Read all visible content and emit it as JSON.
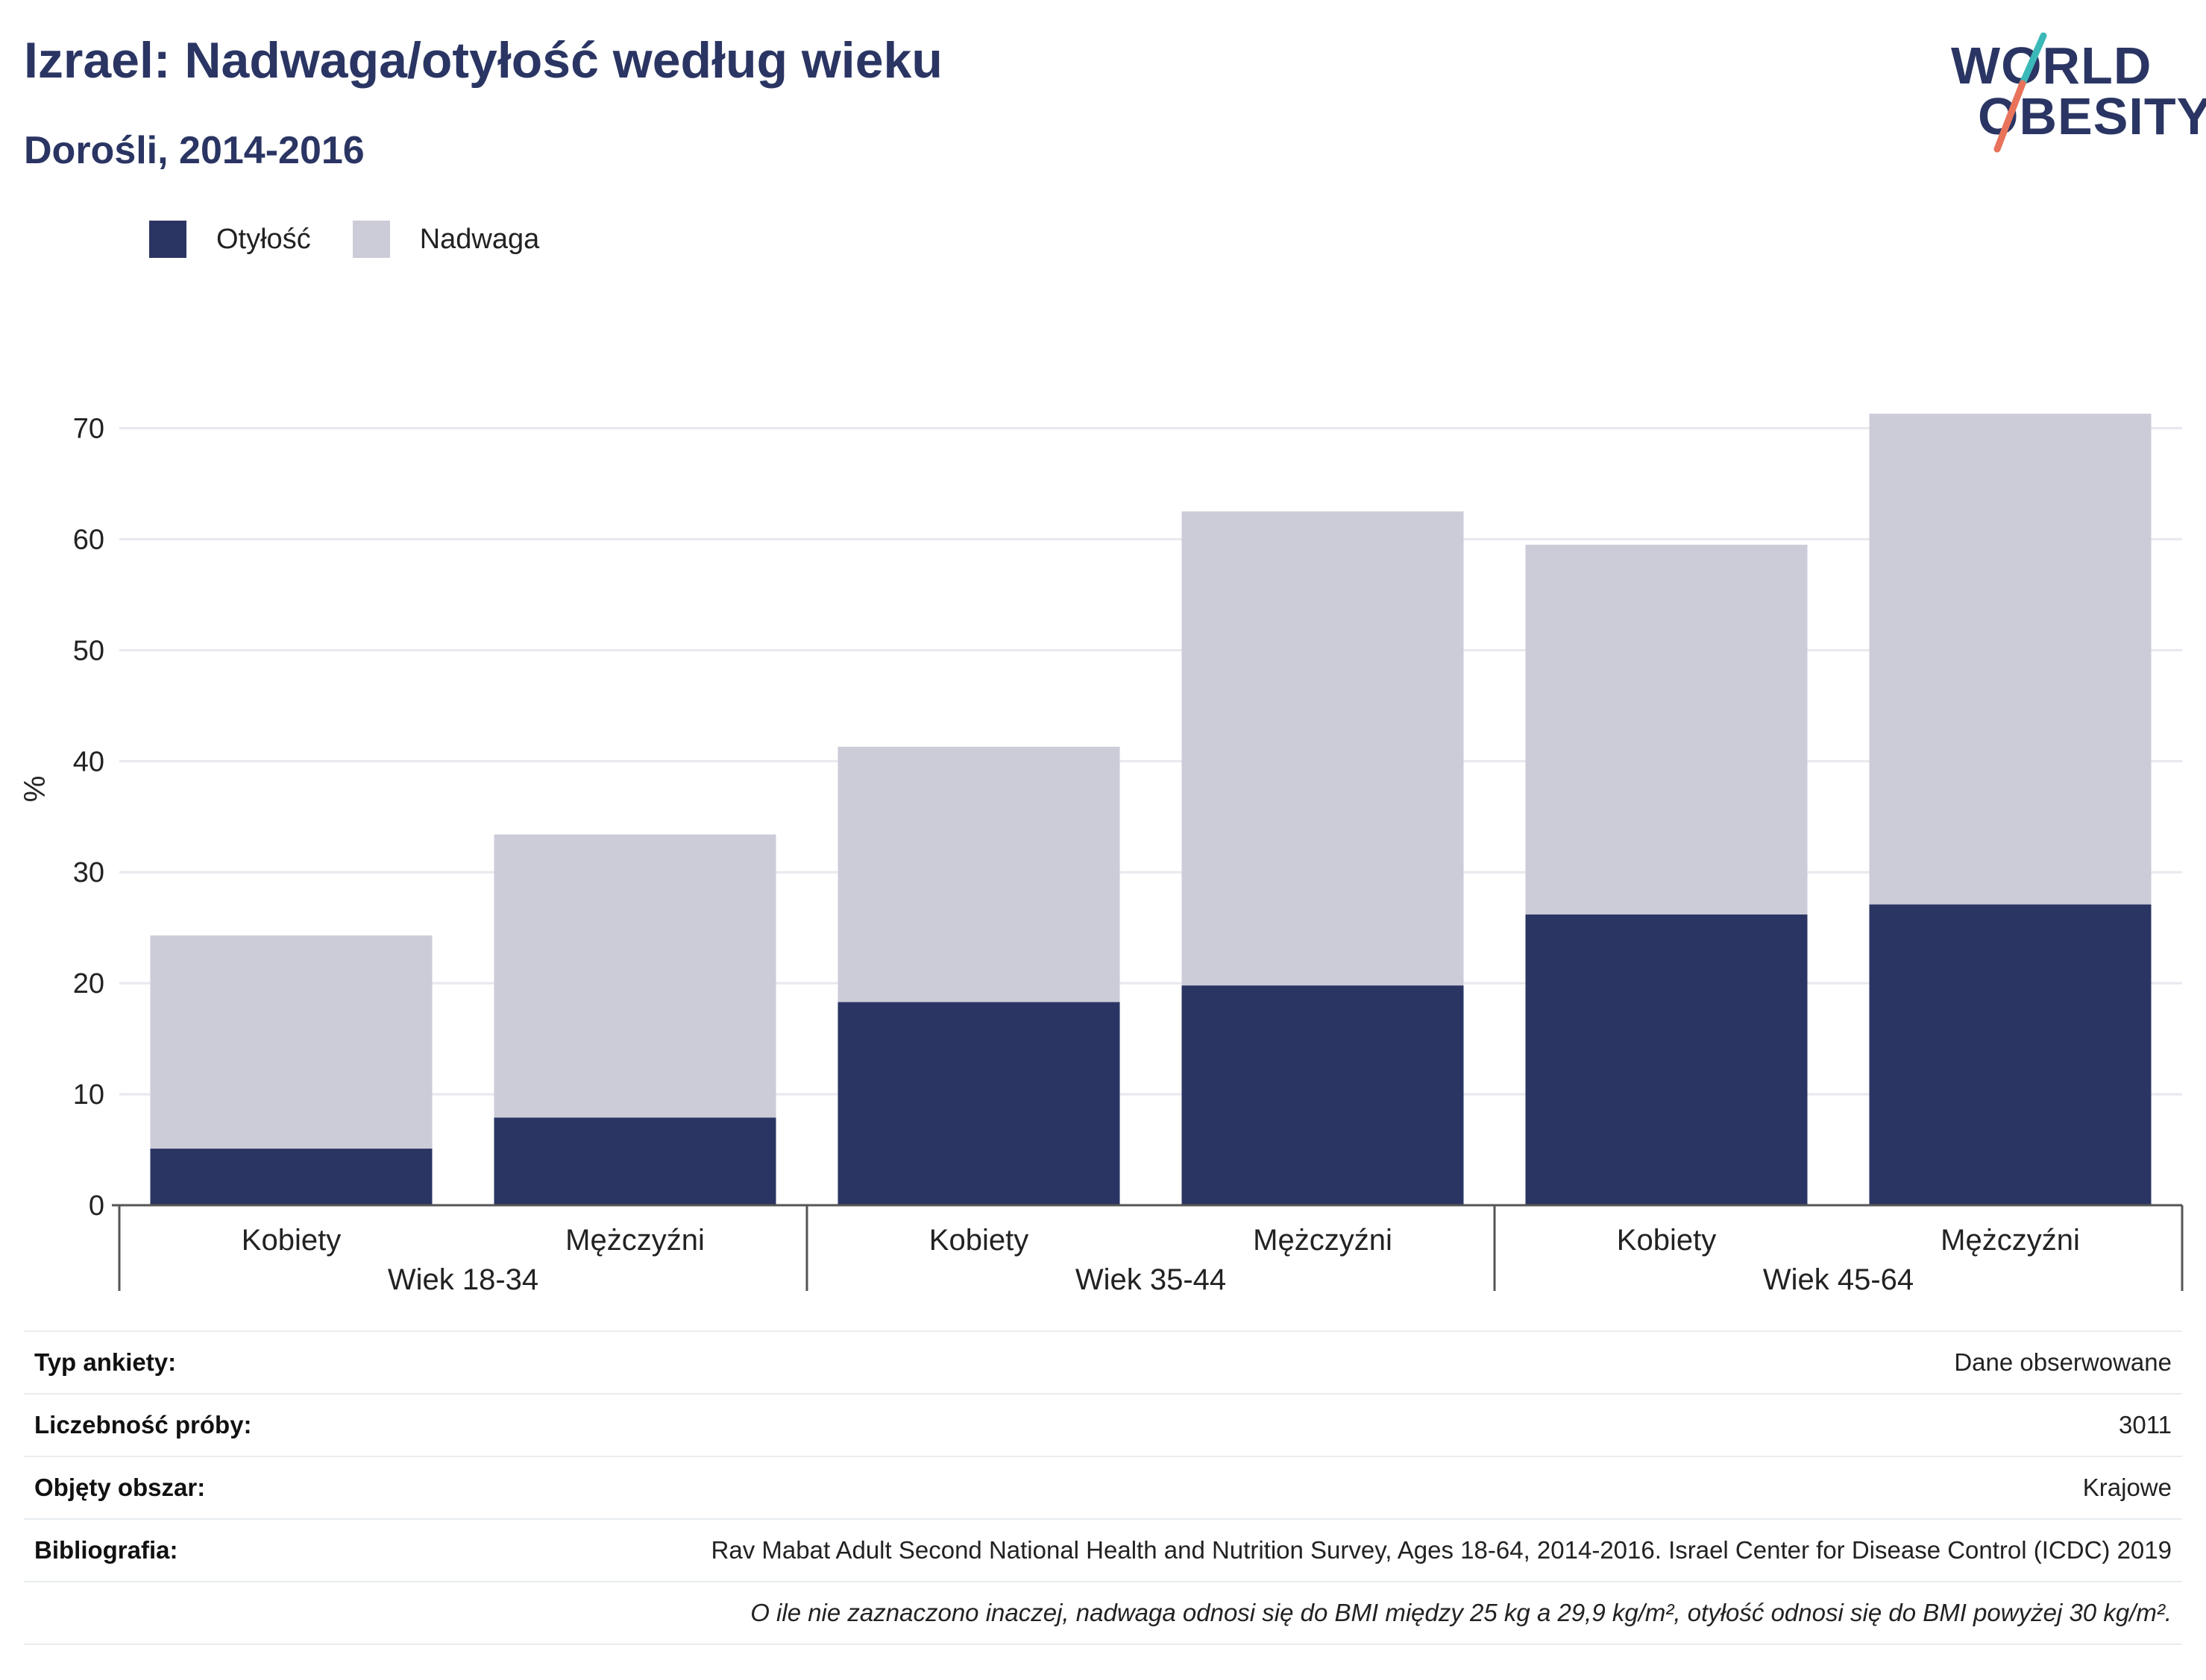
{
  "title": "Izrael: Nadwaga/otyłość według wieku",
  "subtitle": "Dorośli, 2014-2016",
  "logo": {
    "line1": "WORLD",
    "line2": "OBESITY",
    "accent_teal": "#3bb8b8",
    "accent_coral": "#e8735a"
  },
  "colors": {
    "obesity": "#2a3563",
    "overweight": "#cbccd8",
    "grid": "#e8e8ee",
    "axis": "#555555"
  },
  "chart_data": {
    "type": "bar",
    "stacked": true,
    "ylabel": "%",
    "ylim": [
      0,
      75
    ],
    "yticks": [
      0,
      10,
      20,
      30,
      40,
      50,
      60,
      70
    ],
    "grid": true,
    "legend_position": "top-left",
    "groups": [
      {
        "label": "Wiek 18-34",
        "categories": [
          "Kobiety",
          "Mężczyźni"
        ]
      },
      {
        "label": "Wiek 35-44",
        "categories": [
          "Kobiety",
          "Mężczyźni"
        ]
      },
      {
        "label": "Wiek 45-64",
        "categories": [
          "Kobiety",
          "Mężczyźni"
        ]
      }
    ],
    "series": [
      {
        "name": "Otyłość",
        "values": [
          5.1,
          7.9,
          18.3,
          19.8,
          26.2,
          27.1
        ]
      },
      {
        "name": "Nadwaga",
        "values": [
          19.2,
          25.5,
          23.0,
          42.7,
          33.3,
          44.2
        ]
      }
    ]
  },
  "info": [
    {
      "label": "Typ ankiety:",
      "value": "Dane obserwowane"
    },
    {
      "label": "Liczebność próby:",
      "value": "3011"
    },
    {
      "label": "Objęty obszar:",
      "value": "Krajowe"
    },
    {
      "label": "Bibliografia:",
      "value": "Rav Mabat Adult Second National Health and Nutrition Survey, Ages 18-64, 2014-2016. Israel Center for Disease Control (ICDC) 2019"
    }
  ],
  "note": "O ile nie zaznaczono inaczej, nadwaga odnosi się do BMI między 25 kg a 29,9 kg/m², otyłość odnosi się do BMI powyżej 30 kg/m²."
}
